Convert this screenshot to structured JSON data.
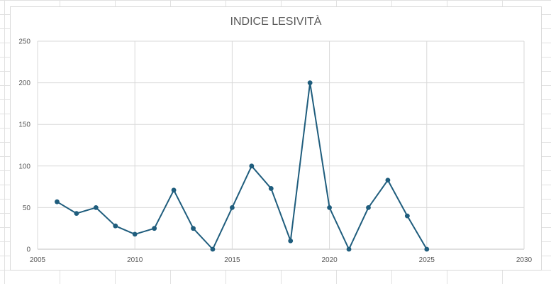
{
  "chart_data": {
    "type": "scatter",
    "title": "INDICE LESIVITÀ",
    "xlabel": "",
    "ylabel": "",
    "xlim": [
      2005,
      2030
    ],
    "ylim": [
      0,
      250
    ],
    "xticks": [
      "2005",
      "2010",
      "2015",
      "2020",
      "2025",
      "2030"
    ],
    "yticks": [
      "0",
      "50",
      "100",
      "150",
      "200",
      "250"
    ],
    "grid": true,
    "line_color": "#1f5d7d",
    "series": [
      {
        "x": [
          2006,
          2007,
          2008,
          2009,
          2010,
          2011,
          2012,
          2013,
          2014,
          2015,
          2016,
          2017,
          2018,
          2019,
          2020,
          2021,
          2022,
          2023,
          2024,
          2025
        ],
        "y": [
          57,
          43,
          50,
          28,
          18,
          25,
          71,
          25,
          0,
          50,
          100,
          73,
          10,
          200,
          50,
          0,
          50,
          83,
          40,
          0
        ]
      }
    ]
  }
}
